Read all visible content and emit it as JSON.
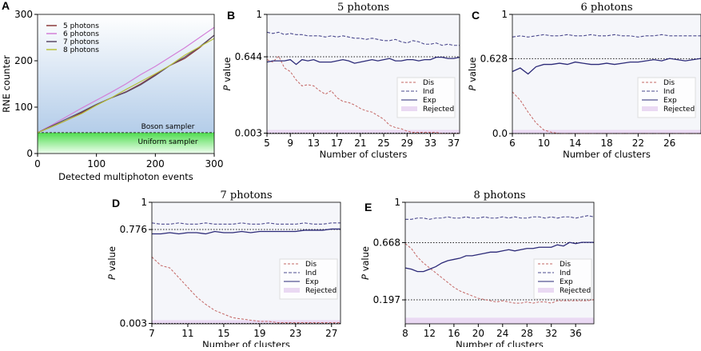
{
  "chart_data": [
    {
      "panel": "A",
      "type": "line",
      "title": "",
      "xlabel": "Detected multiphoton events",
      "ylabel": "RNE counter",
      "xlim": [
        0,
        300
      ],
      "ylim": [
        0,
        300
      ],
      "xticks": [
        0,
        100,
        200,
        300
      ],
      "yticks": [
        0,
        100,
        200,
        300
      ],
      "x": [
        0,
        25,
        50,
        75,
        100,
        125,
        150,
        175,
        200,
        225,
        250,
        275,
        300
      ],
      "series": [
        {
          "name": "5 photons",
          "color": "#8b3b3b",
          "values": [
            45,
            58,
            72,
            88,
            105,
            120,
            133,
            150,
            170,
            190,
            205,
            228,
            255
          ]
        },
        {
          "name": "6 photons",
          "color": "#d37fd8",
          "values": [
            45,
            62,
            80,
            98,
            115,
            132,
            150,
            170,
            188,
            208,
            228,
            250,
            272
          ]
        },
        {
          "name": "7 photons",
          "color": "#5b4a66",
          "values": [
            45,
            60,
            75,
            90,
            106,
            120,
            132,
            148,
            168,
            190,
            208,
            230,
            255
          ]
        },
        {
          "name": "8 photons",
          "color": "#b9c23d",
          "values": [
            45,
            58,
            72,
            86,
            104,
            120,
            138,
            155,
            172,
            190,
            212,
            230,
            248
          ]
        }
      ],
      "threshold": 45,
      "annotations": [
        "Boson sampler",
        "Uniform sampler"
      ]
    },
    {
      "panel": "B",
      "type": "line",
      "title": "5 photons",
      "xlabel": "Number of clusters",
      "ylabel": "P value",
      "xlim": [
        5,
        38
      ],
      "ylim": [
        0,
        1
      ],
      "xticks": [
        5,
        9,
        13,
        17,
        21,
        25,
        29,
        33,
        37
      ],
      "yticks": [
        {
          "v": 1,
          "l": "1"
        },
        {
          "v": 0.644,
          "l": "0.644"
        },
        {
          "v": 0.003,
          "l": "0.003"
        }
      ],
      "threshold": 0.644,
      "rejected": [
        0,
        0.03
      ],
      "x0": 5,
      "series": [
        {
          "name": "Dis",
          "values": [
            0.62,
            0.6,
            0.65,
            0.55,
            0.52,
            0.45,
            0.4,
            0.41,
            0.4,
            0.36,
            0.33,
            0.36,
            0.3,
            0.27,
            0.26,
            0.24,
            0.21,
            0.19,
            0.18,
            0.15,
            0.12,
            0.07,
            0.05,
            0.04,
            0.02,
            0.01,
            0.01,
            0.01,
            0.01,
            0.01,
            0.0,
            0.0,
            0.0,
            0.0
          ]
        },
        {
          "name": "Ind",
          "values": [
            0.85,
            0.84,
            0.85,
            0.83,
            0.84,
            0.83,
            0.83,
            0.82,
            0.82,
            0.82,
            0.81,
            0.82,
            0.81,
            0.82,
            0.81,
            0.8,
            0.8,
            0.79,
            0.8,
            0.79,
            0.78,
            0.78,
            0.79,
            0.77,
            0.76,
            0.78,
            0.77,
            0.75,
            0.75,
            0.76,
            0.74,
            0.75,
            0.74,
            0.74
          ]
        },
        {
          "name": "Exp",
          "values": [
            0.6,
            0.61,
            0.61,
            0.61,
            0.62,
            0.58,
            0.62,
            0.61,
            0.62,
            0.6,
            0.6,
            0.6,
            0.61,
            0.62,
            0.61,
            0.59,
            0.6,
            0.61,
            0.62,
            0.61,
            0.62,
            0.63,
            0.61,
            0.61,
            0.62,
            0.62,
            0.61,
            0.62,
            0.62,
            0.64,
            0.64,
            0.63,
            0.63,
            0.64
          ]
        }
      ]
    },
    {
      "panel": "C",
      "type": "line",
      "title": "6 photons",
      "xlabel": "Number of clusters",
      "ylabel": "P value",
      "xlim": [
        6,
        30
      ],
      "ylim": [
        0,
        1
      ],
      "xticks": [
        6,
        10,
        14,
        18,
        22,
        26
      ],
      "yticks": [
        {
          "v": 1,
          "l": "1"
        },
        {
          "v": 0.628,
          "l": "0.628"
        },
        {
          "v": 0.0,
          "l": "0.0"
        }
      ],
      "threshold": 0.628,
      "rejected": [
        0,
        0.03
      ],
      "x0": 6,
      "series": [
        {
          "name": "Dis",
          "values": [
            0.35,
            0.28,
            0.18,
            0.09,
            0.03,
            0.01,
            0.0,
            0.0,
            0.0,
            0.0,
            0.0,
            0.0,
            0.0,
            0.0,
            0.0,
            0.0,
            0.0,
            0.0,
            0.0,
            0.0,
            0.0,
            0.0,
            0.0,
            0.0,
            0.0
          ]
        },
        {
          "name": "Ind",
          "values": [
            0.81,
            0.82,
            0.81,
            0.82,
            0.83,
            0.82,
            0.82,
            0.83,
            0.82,
            0.82,
            0.83,
            0.82,
            0.82,
            0.83,
            0.82,
            0.82,
            0.81,
            0.82,
            0.82,
            0.83,
            0.82,
            0.82,
            0.82,
            0.82,
            0.82
          ]
        },
        {
          "name": "Exp",
          "values": [
            0.52,
            0.55,
            0.5,
            0.56,
            0.58,
            0.58,
            0.59,
            0.58,
            0.6,
            0.59,
            0.58,
            0.58,
            0.59,
            0.58,
            0.59,
            0.6,
            0.6,
            0.61,
            0.62,
            0.61,
            0.63,
            0.62,
            0.61,
            0.62,
            0.63
          ]
        }
      ]
    },
    {
      "panel": "D",
      "type": "line",
      "title": "7 photons",
      "xlabel": "Number of clusters",
      "ylabel": "P value",
      "xlim": [
        7,
        28
      ],
      "ylim": [
        0,
        1
      ],
      "xticks": [
        7,
        11,
        15,
        19,
        23,
        27
      ],
      "yticks": [
        {
          "v": 1,
          "l": "1"
        },
        {
          "v": 0.776,
          "l": "0.776"
        },
        {
          "v": 0.003,
          "l": "0.003"
        }
      ],
      "threshold": 0.776,
      "rejected": [
        0,
        0.03
      ],
      "x0": 7,
      "series": [
        {
          "name": "Dis",
          "values": [
            0.55,
            0.48,
            0.46,
            0.38,
            0.3,
            0.22,
            0.16,
            0.11,
            0.08,
            0.05,
            0.04,
            0.03,
            0.02,
            0.02,
            0.01,
            0.01,
            0.01,
            0.01,
            0.01,
            0.01,
            0.01,
            0.01
          ]
        },
        {
          "name": "Ind",
          "values": [
            0.83,
            0.82,
            0.82,
            0.83,
            0.82,
            0.82,
            0.83,
            0.82,
            0.82,
            0.82,
            0.83,
            0.82,
            0.82,
            0.83,
            0.82,
            0.82,
            0.82,
            0.83,
            0.82,
            0.82,
            0.83,
            0.83
          ]
        },
        {
          "name": "Exp",
          "values": [
            0.74,
            0.74,
            0.75,
            0.74,
            0.75,
            0.75,
            0.74,
            0.76,
            0.75,
            0.75,
            0.76,
            0.75,
            0.76,
            0.76,
            0.76,
            0.76,
            0.76,
            0.77,
            0.77,
            0.77,
            0.78,
            0.78
          ]
        }
      ]
    },
    {
      "panel": "E",
      "type": "line",
      "title": "8 photons",
      "xlabel": "Number of clusters",
      "ylabel": "P value",
      "xlim": [
        8,
        39
      ],
      "ylim": [
        0,
        1
      ],
      "xticks": [
        8,
        12,
        16,
        20,
        24,
        28,
        32,
        36
      ],
      "yticks": [
        {
          "v": 1,
          "l": "1"
        },
        {
          "v": 0.668,
          "l": "0.668"
        },
        {
          "v": 0.197,
          "l": "0.197"
        }
      ],
      "threshold": [
        0.668,
        0.197
      ],
      "rejected": [
        0,
        0.05
      ],
      "x0": 8,
      "series": [
        {
          "name": "Dis",
          "values": [
            0.66,
            0.62,
            0.55,
            0.5,
            0.46,
            0.42,
            0.38,
            0.34,
            0.3,
            0.27,
            0.25,
            0.23,
            0.21,
            0.2,
            0.19,
            0.18,
            0.19,
            0.18,
            0.17,
            0.17,
            0.18,
            0.17,
            0.18,
            0.18,
            0.17,
            0.19,
            0.19,
            0.19,
            0.19,
            0.19,
            0.19,
            0.2
          ]
        },
        {
          "name": "Ind",
          "values": [
            0.86,
            0.86,
            0.87,
            0.87,
            0.86,
            0.87,
            0.87,
            0.88,
            0.87,
            0.87,
            0.88,
            0.87,
            0.87,
            0.88,
            0.87,
            0.87,
            0.88,
            0.87,
            0.88,
            0.87,
            0.87,
            0.88,
            0.88,
            0.87,
            0.88,
            0.87,
            0.88,
            0.88,
            0.87,
            0.88,
            0.89,
            0.88
          ]
        },
        {
          "name": "Exp",
          "values": [
            0.46,
            0.45,
            0.43,
            0.43,
            0.45,
            0.47,
            0.5,
            0.52,
            0.53,
            0.54,
            0.56,
            0.56,
            0.57,
            0.58,
            0.59,
            0.59,
            0.6,
            0.61,
            0.6,
            0.61,
            0.62,
            0.62,
            0.63,
            0.63,
            0.63,
            0.65,
            0.64,
            0.67,
            0.66,
            0.67,
            0.67,
            0.67
          ]
        }
      ]
    }
  ],
  "legend_labels": {
    "dis": "Dis",
    "ind": "Ind",
    "exp": "Exp",
    "rejected": "Rejected"
  },
  "colors": {
    "dis": "#c46664",
    "ind": "#4c4a8e",
    "exp": "#2c2a78",
    "rejected": "#ead9f3",
    "plot_bg": "#f5f6fa"
  }
}
